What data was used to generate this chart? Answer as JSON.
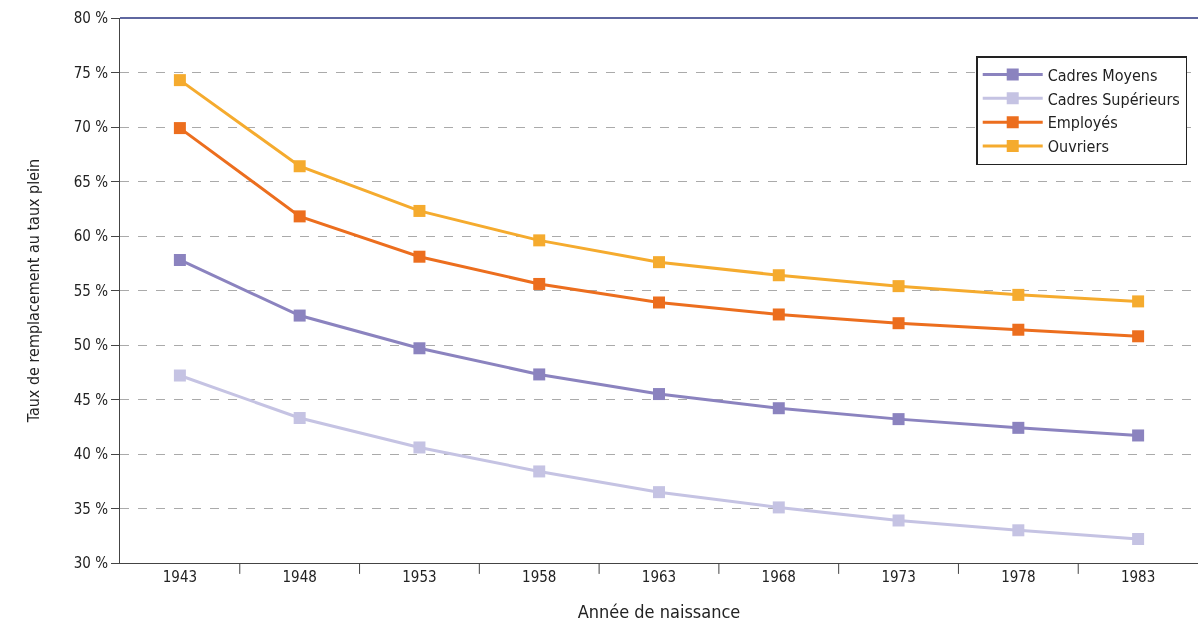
{
  "chart_data": {
    "type": "line",
    "xlabel": "Année de naissance",
    "ylabel": "Taux de remplacement au taux plein",
    "categories": [
      "1943",
      "1948",
      "1953",
      "1958",
      "1963",
      "1968",
      "1973",
      "1978",
      "1983"
    ],
    "series": [
      {
        "name": "Cadres Moyens",
        "color": "#8b83bf",
        "values": [
          57.8,
          52.7,
          49.7,
          47.3,
          45.5,
          44.2,
          43.2,
          42.4,
          41.7
        ]
      },
      {
        "name": "Cadres Supérieurs",
        "color": "#c5c3e3",
        "values": [
          47.2,
          43.3,
          40.6,
          38.4,
          36.5,
          35.1,
          33.9,
          33.0,
          32.2
        ]
      },
      {
        "name": "Employés",
        "color": "#ec6e1e",
        "values": [
          69.9,
          61.8,
          58.1,
          55.6,
          53.9,
          52.8,
          52.0,
          51.4,
          50.8
        ]
      },
      {
        "name": "Ouvriers",
        "color": "#f5ab2e",
        "values": [
          74.3,
          66.4,
          62.3,
          59.6,
          57.6,
          56.4,
          55.4,
          54.6,
          54.0
        ]
      }
    ],
    "ylim": [
      30,
      80
    ],
    "yticks": [
      {
        "value": 30,
        "label": "30 %"
      },
      {
        "value": 35,
        "label": "35 %"
      },
      {
        "value": 40,
        "label": "40 %"
      },
      {
        "value": 45,
        "label": "45 %"
      },
      {
        "value": 50,
        "label": "50 %"
      },
      {
        "value": 55,
        "label": "55 %"
      },
      {
        "value": 60,
        "label": "60 %"
      },
      {
        "value": 65,
        "label": "65 %"
      },
      {
        "value": 70,
        "label": "70 %"
      },
      {
        "value": 75,
        "label": "75 %"
      },
      {
        "value": 80,
        "label": "80 %"
      }
    ],
    "grid": "y",
    "legend": "top right",
    "marker": "square",
    "line_style": "solid"
  }
}
